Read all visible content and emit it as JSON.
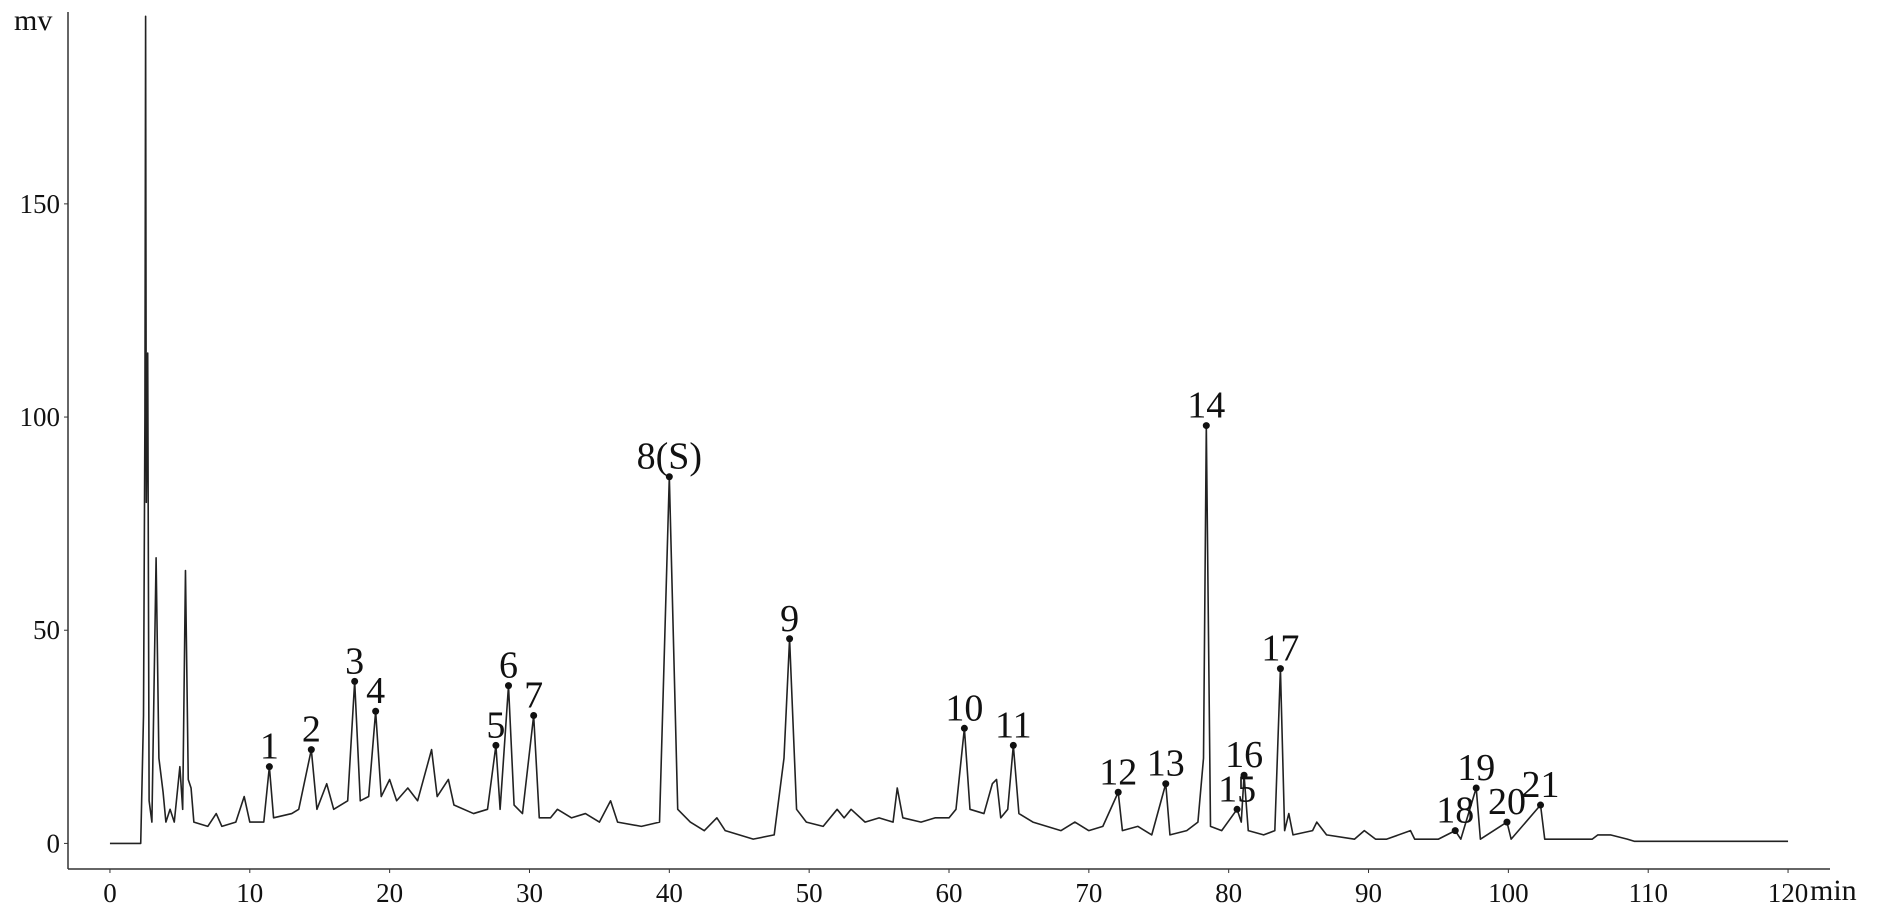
{
  "chart_data": {
    "type": "line",
    "y_label": "mv",
    "x_label": "min",
    "color": "#222222",
    "xlim": [
      -3,
      123
    ],
    "ylim": [
      -6,
      195
    ],
    "xticks": [
      0,
      10,
      20,
      30,
      40,
      50,
      60,
      70,
      80,
      90,
      100,
      110,
      120
    ],
    "yticks": [
      0,
      50,
      100,
      150
    ],
    "grid": false,
    "x": [
      0,
      2.2,
      2.4,
      2.5,
      2.55,
      2.6,
      2.7,
      2.8,
      3.0,
      3.3,
      3.5,
      3.8,
      4.0,
      4.3,
      4.6,
      5.0,
      5.2,
      5.4,
      5.6,
      5.8,
      6.0,
      7.0,
      7.6,
      8.0,
      9.0,
      9.6,
      10.0,
      11.0,
      11.4,
      11.7,
      13,
      13.5,
      14.4,
      14.8,
      15.5,
      16,
      17,
      17.5,
      17.9,
      18.5,
      19,
      19.4,
      20,
      20.5,
      21.3,
      22,
      23,
      23.4,
      24.2,
      24.6,
      26,
      27,
      27.6,
      27.9,
      28.5,
      28.9,
      29.5,
      30.3,
      30.7,
      31.5,
      32,
      33,
      34,
      35,
      35.8,
      36.3,
      38,
      39.3,
      40,
      40.6,
      41.5,
      42.5,
      43.4,
      44,
      46,
      47.5,
      48.2,
      48.6,
      49.1,
      49.8,
      51,
      52,
      52.5,
      53,
      54,
      55,
      56,
      56.3,
      56.7,
      58,
      59,
      60,
      60.5,
      61.1,
      61.5,
      62.5,
      63.1,
      63.4,
      63.7,
      64.2,
      64.6,
      65,
      66,
      67,
      68,
      69,
      70,
      71,
      72.1,
      72.4,
      73.5,
      74.5,
      75.5,
      75.8,
      77,
      77.8,
      78.2,
      78.4,
      78.7,
      79.5,
      80.6,
      80.9,
      81.1,
      81.4,
      82.5,
      83.3,
      83.7,
      84.0,
      84.3,
      84.6,
      86,
      86.3,
      87,
      89,
      89.7,
      90.5,
      91.3,
      93,
      93.3,
      95,
      96.2,
      96.6,
      97.7,
      98,
      99.9,
      100.2,
      102.3,
      102.6,
      104,
      106,
      106.4,
      107.3,
      108.5,
      109,
      120
    ],
    "values": [
      0,
      0,
      30,
      100,
      194,
      80,
      115,
      10,
      5,
      67,
      20,
      12,
      5,
      8,
      5,
      18,
      8,
      64,
      15,
      13,
      5,
      4,
      7,
      4,
      5,
      11,
      5,
      5,
      18,
      6,
      7,
      8,
      22,
      8,
      14,
      8,
      10,
      38,
      10,
      11,
      31,
      11,
      15,
      10,
      13,
      10,
      22,
      11,
      15,
      9,
      7,
      8,
      23,
      8,
      37,
      9,
      7,
      30,
      6,
      6,
      8,
      6,
      7,
      5,
      10,
      5,
      4,
      5,
      86,
      8,
      5,
      3,
      6,
      3,
      1,
      2,
      20,
      48,
      8,
      5,
      4,
      8,
      6,
      8,
      5,
      6,
      5,
      13,
      6,
      5,
      6,
      6,
      8,
      27,
      8,
      7,
      14,
      15,
      6,
      8,
      23,
      7,
      5,
      4,
      3,
      5,
      3,
      4,
      12,
      3,
      4,
      2,
      14,
      2,
      3,
      5,
      20,
      98,
      4,
      3,
      8,
      5,
      16,
      3,
      2,
      3,
      41,
      3,
      7,
      2,
      3,
      5,
      2,
      1,
      3,
      1,
      1,
      3,
      1,
      1,
      3,
      1,
      13,
      1,
      5,
      1,
      9,
      1,
      1,
      1,
      2,
      2,
      1,
      0.5,
      0.5
    ],
    "peaks": [
      {
        "label": "1",
        "x": 11.4,
        "value": 18
      },
      {
        "label": "2",
        "x": 14.4,
        "value": 22
      },
      {
        "label": "3",
        "x": 17.5,
        "value": 38
      },
      {
        "label": "4",
        "x": 19,
        "value": 31
      },
      {
        "label": "5",
        "x": 27.6,
        "value": 23
      },
      {
        "label": "6",
        "x": 28.5,
        "value": 37
      },
      {
        "label": "7",
        "x": 30.3,
        "value": 30
      },
      {
        "label": "8(S)",
        "x": 40,
        "value": 86
      },
      {
        "label": "9",
        "x": 48.6,
        "value": 48
      },
      {
        "label": "10",
        "x": 61.1,
        "value": 27
      },
      {
        "label": "11",
        "x": 64.6,
        "value": 23
      },
      {
        "label": "12",
        "x": 72.1,
        "value": 12
      },
      {
        "label": "13",
        "x": 75.5,
        "value": 14
      },
      {
        "label": "14",
        "x": 78.4,
        "value": 98
      },
      {
        "label": "15",
        "x": 80.6,
        "value": 8
      },
      {
        "label": "16",
        "x": 81.1,
        "value": 16
      },
      {
        "label": "17",
        "x": 83.7,
        "value": 41
      },
      {
        "label": "18",
        "x": 96.2,
        "value": 3
      },
      {
        "label": "19",
        "x": 97.7,
        "value": 13
      },
      {
        "label": "20",
        "x": 99.9,
        "value": 5
      },
      {
        "label": "21",
        "x": 102.3,
        "value": 9
      }
    ]
  }
}
